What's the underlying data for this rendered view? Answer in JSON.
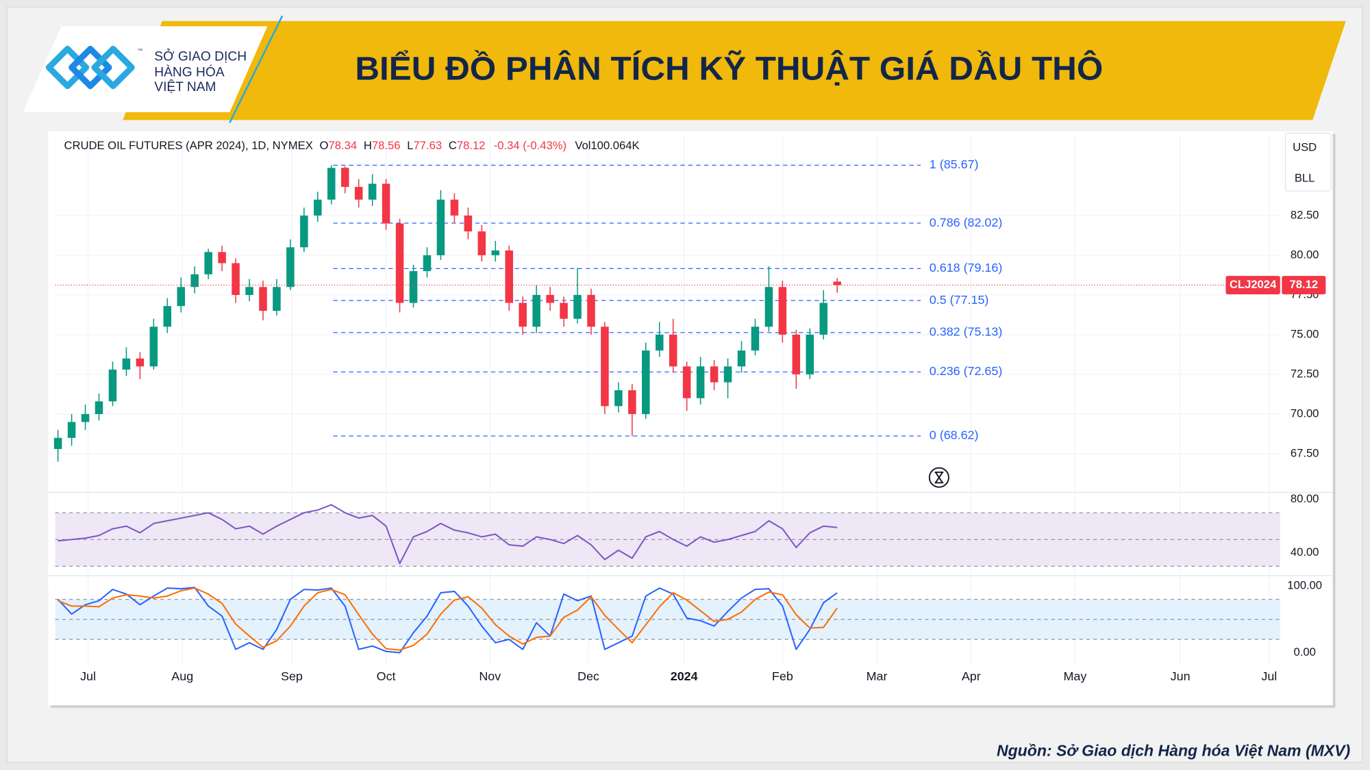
{
  "header": {
    "logo_mark": "™",
    "logo_text": [
      "SỞ GIAO DỊCH",
      "HÀNG HÓA",
      "VIỆT NAM"
    ],
    "title": "BIỂU ĐỒ PHÂN TÍCH KỸ THUẬT GIÁ DẦU THÔ"
  },
  "source": "Nguồn: Sở Giao dịch Hàng hóa Việt Nam (MXV)",
  "chart_data": [
    {
      "type": "candlestick",
      "title": "CRUDE OIL FUTURES (APR 2024), 1D, NYMEX",
      "ohlc_prefixes": [
        "O",
        "H",
        "L",
        "C"
      ],
      "change_text": "-0.34 (-0.43%)",
      "volume_text": "Vol100.064K",
      "currency": "USD",
      "unit": "BLL",
      "symbol": "CLJ2024",
      "open": [
        67.8,
        68.5,
        69.5,
        70.0,
        70.8,
        72.8,
        73.5,
        73.0,
        75.5,
        76.8,
        78.0,
        78.8,
        80.2,
        79.5,
        77.5,
        78.0,
        76.5,
        78.0,
        80.5,
        82.5,
        83.5,
        85.5,
        84.3,
        83.5,
        84.5,
        82.0,
        77.0,
        79.0,
        80.0,
        83.5,
        82.5,
        81.5,
        80.0,
        80.3,
        77.0,
        75.5,
        77.5,
        77.0,
        76.0,
        77.5,
        75.5,
        70.5,
        71.5,
        70.0,
        74.0,
        75.0,
        73.0,
        71.0,
        73.0,
        72.0,
        73.0,
        74.0,
        75.5,
        78.0,
        75.0,
        72.5,
        75.0,
        78.34
      ],
      "high": [
        69.0,
        70.0,
        70.6,
        71.3,
        73.3,
        74.2,
        73.9,
        76.0,
        77.3,
        78.6,
        79.3,
        80.4,
        80.6,
        79.8,
        78.5,
        78.4,
        78.5,
        81.0,
        83.0,
        84.0,
        85.67,
        85.6,
        84.8,
        85.1,
        84.8,
        82.3,
        79.4,
        80.5,
        84.1,
        83.9,
        83.0,
        81.9,
        80.9,
        80.6,
        77.4,
        78.1,
        78.0,
        77.4,
        79.2,
        77.9,
        75.8,
        72.0,
        71.9,
        74.5,
        75.8,
        76.0,
        73.3,
        73.6,
        73.4,
        73.5,
        74.6,
        76.0,
        79.3,
        78.4,
        75.3,
        75.4,
        77.8,
        78.56
      ],
      "low": [
        67.0,
        68.0,
        69.0,
        69.6,
        70.5,
        72.4,
        72.2,
        72.8,
        75.1,
        76.4,
        77.6,
        78.5,
        79.0,
        77.0,
        77.1,
        75.9,
        76.2,
        77.8,
        80.2,
        82.1,
        83.2,
        83.9,
        83.0,
        83.1,
        81.6,
        76.4,
        76.7,
        78.6,
        79.7,
        82.0,
        81.0,
        79.6,
        79.6,
        76.5,
        75.0,
        75.1,
        76.5,
        75.5,
        75.7,
        75.0,
        70.0,
        70.1,
        68.62,
        69.7,
        73.6,
        72.6,
        70.2,
        70.6,
        71.5,
        71.0,
        72.6,
        73.7,
        75.2,
        74.5,
        71.6,
        72.2,
        74.7,
        77.63
      ],
      "close": [
        68.5,
        69.5,
        70.0,
        70.8,
        72.8,
        73.5,
        73.0,
        75.5,
        76.8,
        78.0,
        78.8,
        80.2,
        79.5,
        77.5,
        78.0,
        76.5,
        78.0,
        80.5,
        82.5,
        83.5,
        85.5,
        84.3,
        83.5,
        84.5,
        82.0,
        77.0,
        79.0,
        80.0,
        83.5,
        82.5,
        81.5,
        80.0,
        80.3,
        77.0,
        75.5,
        77.5,
        77.0,
        76.0,
        77.5,
        75.5,
        70.5,
        71.5,
        70.0,
        74.0,
        75.0,
        73.0,
        71.0,
        73.0,
        72.0,
        73.0,
        74.0,
        75.5,
        78.0,
        75.0,
        72.5,
        75.0,
        77.0,
        78.12
      ],
      "up_color": "#089981",
      "down_color": "#f23645",
      "ylim": [
        65.07,
        87.52
      ],
      "yticks": [
        {
          "value": 67.5,
          "label": "67.50"
        },
        {
          "value": 70,
          "label": "70.00"
        },
        {
          "value": 72.5,
          "label": "72.50"
        },
        {
          "value": 75,
          "label": "75.00"
        },
        {
          "value": 77.5,
          "label": "77.50"
        },
        {
          "value": 80,
          "label": "80.00"
        },
        {
          "value": 82.5,
          "label": "82.50"
        }
      ],
      "xlim": [
        -0.2,
        89.4
      ],
      "xticks": [
        {
          "value": 2.2,
          "label": "Jul"
        },
        {
          "value": 9.1,
          "label": "Aug"
        },
        {
          "value": 17.1,
          "label": "Sep"
        },
        {
          "value": 24,
          "label": "Oct"
        },
        {
          "value": 31.6,
          "label": "Nov"
        },
        {
          "value": 38.8,
          "label": "Dec"
        },
        {
          "value": 45.8,
          "label": "2024"
        },
        {
          "value": 53,
          "label": "Feb"
        },
        {
          "value": 59.9,
          "label": "Mar"
        },
        {
          "value": 66.8,
          "label": "Apr"
        },
        {
          "value": 74.4,
          "label": "May"
        },
        {
          "value": 82.1,
          "label": "Jun"
        },
        {
          "value": 88.6,
          "label": "Jul"
        }
      ],
      "grid": true,
      "fib_color": "#2962ff",
      "fib_levels": [
        {
          "value": 85.67,
          "label": "1 (85.67)"
        },
        {
          "value": 82.02,
          "label": "0.786 (82.02)"
        },
        {
          "value": 79.16,
          "label": "0.618 (79.16)"
        },
        {
          "value": 77.15,
          "label": "0.5 (77.15)"
        },
        {
          "value": 75.13,
          "label": "0.382 (75.13)"
        },
        {
          "value": 72.65,
          "label": "0.236 (72.65)"
        },
        {
          "value": 68.62,
          "label": "0 (68.62)"
        }
      ]
    },
    {
      "type": "line",
      "values": [
        49,
        50,
        51,
        53,
        58,
        60,
        55,
        62,
        64,
        66,
        68,
        70,
        65,
        58,
        60,
        54,
        60,
        65,
        70,
        72,
        76,
        70,
        66,
        68,
        60,
        32,
        52,
        56,
        62,
        57,
        55,
        52,
        54,
        46,
        45,
        52,
        50,
        47,
        53,
        46,
        35,
        42,
        36,
        52,
        56,
        50,
        45,
        52,
        48,
        50,
        53,
        56,
        64,
        58,
        44,
        55,
        60,
        59
      ],
      "color": "#7e57c2",
      "band_color": "#ede7f6",
      "ylim": [
        24.3,
        83.3
      ],
      "yticks": [
        {
          "value": 40,
          "label": "40.00"
        },
        {
          "value": 80,
          "label": "80.00"
        }
      ],
      "levels": [
        30,
        50,
        70
      ]
    },
    {
      "type": "line",
      "series": [
        {
          "color": "#2962ff",
          "values": [
            80,
            58,
            72,
            78,
            95,
            88,
            72,
            85,
            97,
            96,
            98,
            70,
            55,
            5,
            15,
            5,
            35,
            80,
            95,
            94,
            97,
            70,
            5,
            10,
            2,
            0,
            30,
            55,
            90,
            92,
            70,
            40,
            15,
            20,
            5,
            45,
            25,
            88,
            78,
            85,
            5,
            15,
            25,
            85,
            97,
            88,
            52,
            48,
            40,
            62,
            82,
            95,
            96,
            70,
            5,
            35,
            75,
            90
          ]
        },
        {
          "color": "#ff6d00",
          "values": [
            78,
            70,
            70,
            69,
            82,
            87,
            85,
            82,
            85,
            93,
            97,
            88,
            74,
            43,
            25,
            8,
            18,
            40,
            70,
            90,
            95,
            87,
            57,
            28,
            6,
            4,
            11,
            28,
            58,
            79,
            84,
            67,
            42,
            25,
            13,
            23,
            25,
            53,
            64,
            84,
            56,
            35,
            15,
            42,
            69,
            90,
            79,
            63,
            47,
            50,
            61,
            80,
            91,
            87,
            57,
            37,
            38,
            67
          ]
        }
      ],
      "band_color": "#e3f2fd",
      "ylim": [
        -19.7,
        111.8
      ],
      "yticks": [
        {
          "value": 0,
          "label": "0.00"
        },
        {
          "value": 100,
          "label": "100.00"
        }
      ],
      "levels": [
        20,
        50,
        80
      ]
    }
  ]
}
